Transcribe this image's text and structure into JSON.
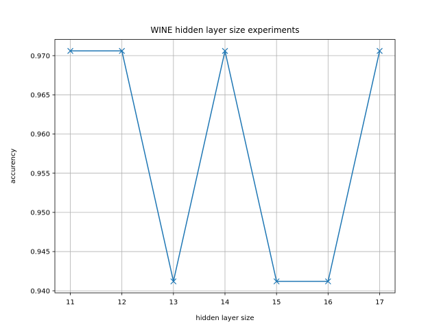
{
  "chart_data": {
    "type": "line",
    "title": "WINE hidden layer size experiments",
    "xlabel": "hidden layer size",
    "ylabel": "accurency",
    "x": [
      11,
      12,
      13,
      14,
      15,
      16,
      17
    ],
    "series": [
      {
        "values": [
          0.9706,
          0.9706,
          0.9412,
          0.9706,
          0.9412,
          0.9412,
          0.9706
        ],
        "color": "#1f77b4",
        "marker": "x"
      }
    ],
    "x_ticks": [
      "11",
      "12",
      "13",
      "14",
      "15",
      "16",
      "17"
    ],
    "y_ticks": [
      "0.940",
      "0.945",
      "0.950",
      "0.955",
      "0.960",
      "0.965",
      "0.970"
    ],
    "xlim": [
      10.7,
      17.3
    ],
    "ylim": [
      0.93974,
      0.97206
    ],
    "grid": true
  }
}
